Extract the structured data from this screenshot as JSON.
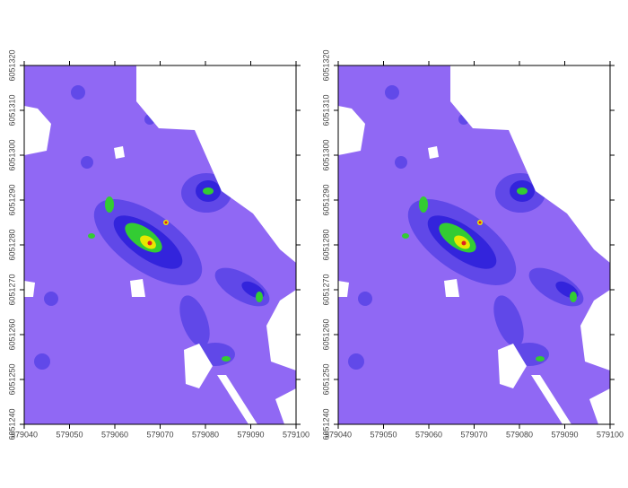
{
  "chart_data": [
    {
      "type": "map",
      "xlim": [
        579040,
        579100
      ],
      "xticks": [
        579040,
        579050,
        579060,
        579070,
        579080,
        579090,
        579100
      ],
      "ylim": [
        6051240,
        6051320
      ],
      "yticks": [
        6051240,
        6051250,
        6051260,
        6051270,
        6051280,
        6051290,
        6051300,
        6051310,
        6051320
      ]
    },
    {
      "type": "map",
      "xlim": [
        579040,
        579100
      ],
      "xticks": [
        579040,
        579050,
        579060,
        579070,
        579080,
        579090,
        579100
      ],
      "ylim": [
        6051240,
        6051320
      ],
      "yticks": [
        6051240,
        6051250,
        6051260,
        6051270,
        6051280,
        6051290,
        6051300,
        6051310,
        6051320
      ]
    }
  ]
}
